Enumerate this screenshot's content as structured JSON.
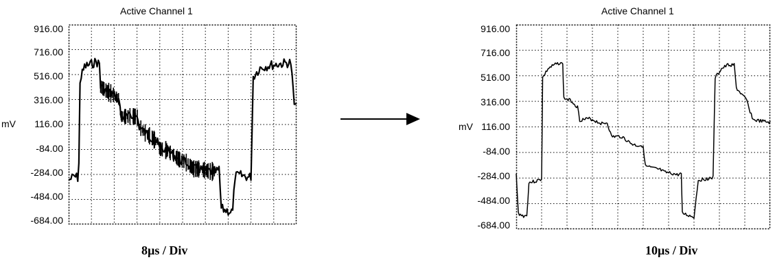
{
  "chart_data": [
    {
      "type": "line",
      "title": "Active Channel 1",
      "ylabel": "mV",
      "xlabel": "8µs / Div",
      "y_ticks": [
        "916.00",
        "716.00",
        "516.00",
        "316.00",
        "116.00",
        "-84.00",
        "-284.00",
        "-484.00",
        "-684.00"
      ],
      "ylim": [
        -684,
        916
      ],
      "x_divisions": 10,
      "grid": true,
      "series": [
        {
          "trace": [
            [
              0.0,
              -330
            ],
            [
              0.25,
              -300
            ],
            [
              0.4,
              -310
            ],
            [
              0.45,
              -200
            ],
            [
              0.5,
              470
            ],
            [
              0.7,
              580
            ],
            [
              1.0,
              600
            ],
            [
              1.2,
              620
            ],
            [
              1.35,
              600
            ],
            [
              1.4,
              420
            ],
            [
              1.7,
              380
            ],
            [
              2.0,
              350
            ],
            [
              2.2,
              320
            ],
            [
              2.3,
              180
            ],
            [
              3.0,
              180
            ],
            [
              3.1,
              100
            ],
            [
              3.4,
              40
            ],
            [
              3.6,
              20
            ],
            [
              3.9,
              -30
            ],
            [
              4.0,
              -80
            ],
            [
              4.3,
              -90
            ],
            [
              4.6,
              -130
            ],
            [
              4.9,
              -170
            ],
            [
              5.1,
              -180
            ],
            [
              5.3,
              -210
            ],
            [
              5.5,
              -240
            ],
            [
              5.7,
              -240
            ],
            [
              6.0,
              -250
            ],
            [
              6.2,
              -260
            ],
            [
              6.5,
              -260
            ],
            [
              6.6,
              -250
            ],
            [
              6.7,
              -560
            ],
            [
              6.9,
              -570
            ],
            [
              7.1,
              -580
            ],
            [
              7.2,
              -580
            ],
            [
              7.3,
              -300
            ],
            [
              7.5,
              -290
            ],
            [
              7.8,
              -300
            ],
            [
              7.9,
              -310
            ],
            [
              8.0,
              -300
            ],
            [
              8.1,
              500
            ],
            [
              8.4,
              570
            ],
            [
              8.8,
              590
            ],
            [
              9.2,
              600
            ],
            [
              9.6,
              610
            ],
            [
              9.75,
              610
            ],
            [
              9.9,
              280
            ],
            [
              10.0,
              250
            ]
          ]
        }
      ]
    },
    {
      "type": "line",
      "title": "Active Channel 1",
      "ylabel": "mV",
      "xlabel": "10µs / Div",
      "y_ticks": [
        "916.00",
        "716.00",
        "516.00",
        "316.00",
        "116.00",
        "-84.00",
        "-284.00",
        "-484.00",
        "-684.00"
      ],
      "ylim": [
        -684,
        916
      ],
      "x_divisions": 10,
      "grid": true,
      "series": [
        {
          "trace": [
            [
              0.0,
              -250
            ],
            [
              0.1,
              -560
            ],
            [
              0.3,
              -580
            ],
            [
              0.5,
              -580
            ],
            [
              0.6,
              -320
            ],
            [
              0.9,
              -310
            ],
            [
              1.1,
              -300
            ],
            [
              1.2,
              -290
            ],
            [
              1.25,
              500
            ],
            [
              1.5,
              570
            ],
            [
              1.8,
              600
            ],
            [
              2.1,
              620
            ],
            [
              2.2,
              600
            ],
            [
              2.25,
              340
            ],
            [
              2.6,
              320
            ],
            [
              2.9,
              270
            ],
            [
              3.0,
              170
            ],
            [
              3.5,
              180
            ],
            [
              3.9,
              150
            ],
            [
              4.1,
              140
            ],
            [
              4.3,
              150
            ],
            [
              4.5,
              40
            ],
            [
              5.0,
              40
            ],
            [
              5.3,
              0
            ],
            [
              5.5,
              -20
            ],
            [
              5.7,
              -30
            ],
            [
              6.0,
              -30
            ],
            [
              6.1,
              -190
            ],
            [
              6.5,
              -210
            ],
            [
              6.8,
              -220
            ],
            [
              7.0,
              -240
            ],
            [
              7.4,
              -250
            ],
            [
              7.6,
              -260
            ],
            [
              7.8,
              -250
            ],
            [
              7.85,
              -560
            ],
            [
              8.2,
              -580
            ],
            [
              8.4,
              -590
            ],
            [
              8.6,
              -300
            ],
            [
              9.0,
              -290
            ],
            [
              9.3,
              -280
            ],
            [
              9.4,
              500
            ],
            [
              9.7,
              570
            ],
            [
              10.0,
              600
            ],
            [
              10.3,
              600
            ],
            [
              10.4,
              420
            ],
            [
              10.6,
              380
            ],
            [
              10.9,
              320
            ],
            [
              11.0,
              260
            ],
            [
              11.2,
              170
            ],
            [
              11.6,
              160
            ],
            [
              12.0,
              150
            ]
          ]
        }
      ]
    }
  ]
}
